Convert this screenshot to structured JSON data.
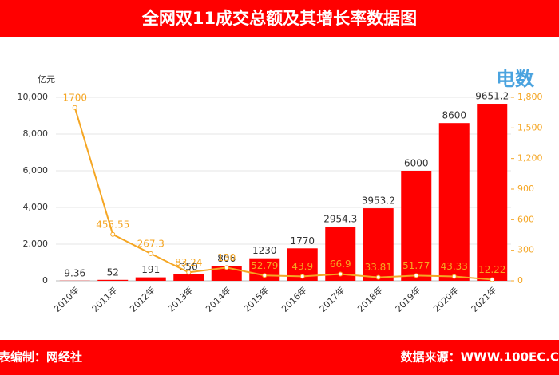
{
  "chart_data": {
    "type": "bar",
    "title": "全网双11成交总额及其增长率数据图",
    "y_label": "亿元",
    "logo_text": "电数",
    "footer_left": "表编制：网经社",
    "footer_right": "数据来源：WWW.100EC.C",
    "categories": [
      "2010年",
      "2011年",
      "2012年",
      "2013年",
      "2014年",
      "2015年",
      "2016年",
      "2017年",
      "2018年",
      "2019年",
      "2020年",
      "2021年"
    ],
    "series": [
      {
        "type": "bar",
        "color": "#ff0000",
        "label_color": "#333333",
        "values": [
          9.36,
          52,
          191,
          350,
          806,
          1230,
          1770,
          2954.3,
          3953.2,
          6000,
          8600,
          9651.2
        ],
        "value_labels": [
          "9.36",
          "52",
          "191",
          "350",
          "806",
          "1230",
          "1770",
          "2954.3",
          "3953.2",
          "6000",
          "8600",
          "9651.2"
        ]
      },
      {
        "type": "line",
        "axis": "y2",
        "color": "#f5a623",
        "label_color": "#f5a623",
        "values": [
          1700,
          455.55,
          267.3,
          83.24,
          130,
          52.79,
          43.9,
          66.9,
          33.81,
          51.77,
          43.33,
          12.22
        ]
      }
    ],
    "ylim": [
      0,
      10000
    ],
    "yticks": [
      0,
      {
        "value": 2000,
        "label": "2,000"
      },
      {
        "value": 4000,
        "label": "4,000"
      },
      {
        "value": 6000,
        "label": "6,000"
      },
      {
        "value": 8000,
        "label": "8,000"
      },
      {
        "value": 10000,
        "label": "10,000"
      }
    ],
    "y2lim": [
      0,
      1800
    ],
    "y2ticks": [
      0,
      300,
      600,
      900,
      {
        "value": 1200,
        "label": "1,200"
      },
      {
        "value": 1500,
        "label": "1,500"
      },
      {
        "value": 1800,
        "label": "1,800"
      }
    ],
    "grid": true
  }
}
